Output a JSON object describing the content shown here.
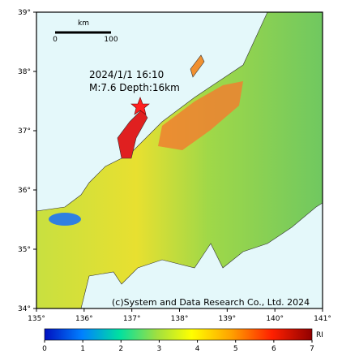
{
  "map": {
    "lat_ticks": [
      {
        "value": 39,
        "label": "39°"
      },
      {
        "value": 38,
        "label": "38°"
      },
      {
        "value": 37,
        "label": "37°"
      },
      {
        "value": 36,
        "label": "36°"
      },
      {
        "value": 35,
        "label": "35°"
      },
      {
        "value": 34,
        "label": "34°"
      }
    ],
    "lon_ticks": [
      {
        "value": 135,
        "label": "135°"
      },
      {
        "value": 136,
        "label": "136°"
      },
      {
        "value": 137,
        "label": "137°"
      },
      {
        "value": 138,
        "label": "138°"
      },
      {
        "value": 139,
        "label": "139°"
      },
      {
        "value": 140,
        "label": "140°"
      },
      {
        "value": 141,
        "label": "141°"
      }
    ],
    "scale_bar": {
      "unit": "km",
      "start": "0",
      "end": "100"
    },
    "event": {
      "time": "2024/1/1 16:10",
      "detail": "M:7.6 Depth:16km"
    },
    "copyright": "(c)System and Data Research Co., Ltd. 2024"
  },
  "colorbar": {
    "ticks": [
      0,
      1,
      2,
      3,
      4,
      5,
      6,
      7
    ],
    "label": "RI"
  }
}
